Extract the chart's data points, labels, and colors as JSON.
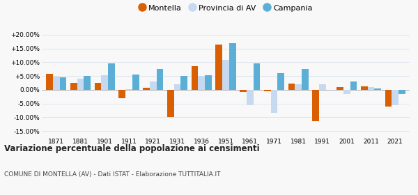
{
  "years": [
    1871,
    1881,
    1901,
    1911,
    1921,
    1931,
    1936,
    1951,
    1961,
    1971,
    1981,
    1991,
    2001,
    2011,
    2021
  ],
  "montella": [
    5.7,
    2.5,
    2.5,
    -3.0,
    0.8,
    -10.0,
    8.5,
    16.5,
    -0.8,
    -0.5,
    2.2,
    -11.5,
    1.0,
    1.2,
    -6.0
  ],
  "provincia_av": [
    4.8,
    4.0,
    5.2,
    0.2,
    3.0,
    2.0,
    5.0,
    10.8,
    -5.5,
    -8.5,
    2.0,
    2.0,
    -1.5,
    1.0,
    -5.5
  ],
  "campania": [
    4.5,
    5.0,
    9.5,
    5.5,
    7.5,
    5.0,
    5.2,
    17.0,
    9.5,
    6.0,
    7.5,
    0.0,
    3.0,
    0.5,
    -1.5
  ],
  "color_montella": "#d95f02",
  "color_provincia": "#c6d9f0",
  "color_campania": "#5bafd6",
  "title": "Variazione percentuale della popolazione ai censimenti",
  "subtitle": "COMUNE DI MONTELLA (AV) - Dati ISTAT - Elaborazione TUTTITALIA.IT",
  "ylim": [
    -17,
    22
  ],
  "yticks": [
    -15,
    -10,
    -5,
    0,
    5,
    10,
    15,
    20
  ],
  "ytick_labels": [
    "-15.00%",
    "-10.00%",
    "-5.00%",
    "0.00%",
    "+5.00%",
    "+10.00%",
    "+15.00%",
    "+20.00%"
  ],
  "background_color": "#f8f8f8",
  "grid_color": "#d8e0ec"
}
